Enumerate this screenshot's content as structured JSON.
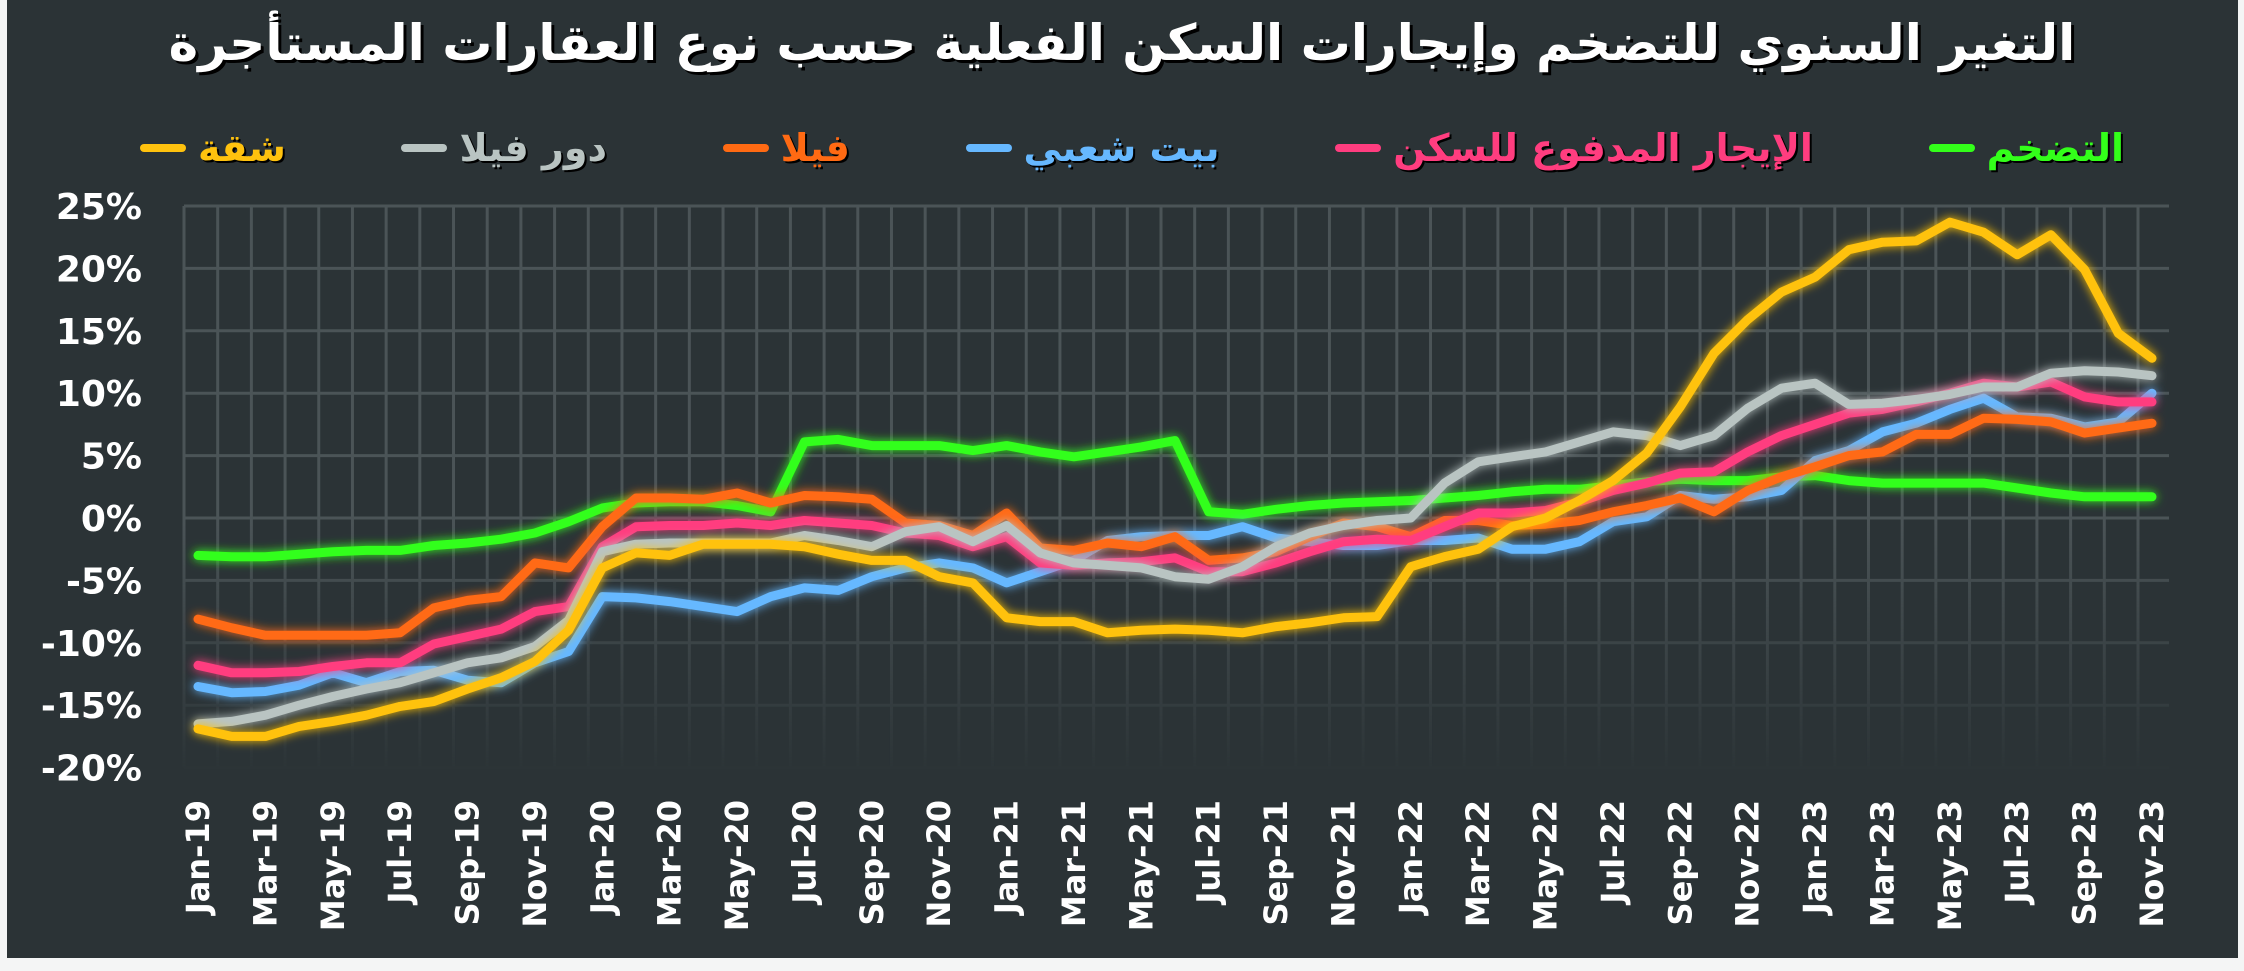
{
  "title": "التغير السنوي للتضخم وإيجارات السكن الفعلية حسب نوع العقارات المستأجرة",
  "legend": [
    {
      "label": "شقة",
      "color": "#ffc20e"
    },
    {
      "label": "دور فيلا",
      "color": "#b9c4c2"
    },
    {
      "label": "فيلا",
      "color": "#ff6a13"
    },
    {
      "label": "بيت شعبي",
      "color": "#66b8ff"
    },
    {
      "label": "الإيجار المدفوع للسكن",
      "color": "#ff3d7f"
    },
    {
      "label": "التضخم",
      "color": "#33ff1a"
    }
  ],
  "colors": {
    "background": "#2b3336",
    "grid": "#4b5457",
    "text": "#ffffff"
  },
  "chart_data": {
    "type": "line",
    "title": "التغير السنوي للتضخم وإيجارات السكن الفعلية حسب نوع العقارات المستأجرة",
    "xlabel": "",
    "ylabel": "",
    "ylim": [
      -20,
      25
    ],
    "yticks": [
      "25%",
      "20%",
      "15%",
      "10%",
      "5%",
      "0%",
      "-5%",
      "-10%",
      "-15%",
      "-20%"
    ],
    "grid": true,
    "legend_position": "top",
    "x": [
      "Jan-19",
      "Feb-19",
      "Mar-19",
      "Apr-19",
      "May-19",
      "Jun-19",
      "Jul-19",
      "Aug-19",
      "Sep-19",
      "Oct-19",
      "Nov-19",
      "Dec-19",
      "Jan-20",
      "Feb-20",
      "Mar-20",
      "Apr-20",
      "May-20",
      "Jun-20",
      "Jul-20",
      "Aug-20",
      "Sep-20",
      "Oct-20",
      "Nov-20",
      "Dec-20",
      "Jan-21",
      "Feb-21",
      "Mar-21",
      "Apr-21",
      "May-21",
      "Jun-21",
      "Jul-21",
      "Aug-21",
      "Sep-21",
      "Oct-21",
      "Nov-21",
      "Dec-21",
      "Jan-22",
      "Feb-22",
      "Mar-22",
      "Apr-22",
      "May-22",
      "Jun-22",
      "Jul-22",
      "Aug-22",
      "Sep-22",
      "Oct-22",
      "Nov-22",
      "Dec-22",
      "Jan-23",
      "Feb-23",
      "Mar-23",
      "Apr-23",
      "May-23",
      "Jun-23",
      "Jul-23",
      "Aug-23",
      "Sep-23",
      "Oct-23",
      "Nov-23"
    ],
    "xtick_labels": [
      "Jan-19",
      "Mar-19",
      "May-19",
      "Jul-19",
      "Sep-19",
      "Nov-19",
      "Jan-20",
      "Mar-20",
      "May-20",
      "Jul-20",
      "Sep-20",
      "Nov-20",
      "Jan-21",
      "Mar-21",
      "May-21",
      "Jul-21",
      "Sep-21",
      "Nov-21",
      "Jan-22",
      "Mar-22",
      "May-22",
      "Jul-22",
      "Sep-22",
      "Nov-22",
      "Jan-23",
      "Mar-23",
      "May-23",
      "Jul-23",
      "Sep-23",
      "Nov-23"
    ],
    "series": [
      {
        "name": "شقة",
        "color": "#ffc20e",
        "values": [
          -16.9,
          -17.5,
          -17.5,
          -16.7,
          -16.3,
          -15.8,
          -15.1,
          -14.7,
          -13.7,
          -12.8,
          -11.5,
          -9.0,
          -4.0,
          -2.8,
          -3.0,
          -2.1,
          -2.1,
          -2.1,
          -2.3,
          -2.9,
          -3.4,
          -3.4,
          -4.7,
          -5.2,
          -8.0,
          -8.3,
          -8.3,
          -9.2,
          -9.0,
          -8.9,
          -9.0,
          -9.2,
          -8.7,
          -8.4,
          -8.0,
          -7.9,
          -3.9,
          -3.1,
          -2.5,
          -0.7,
          0.0,
          1.4,
          3.0,
          5.2,
          8.9,
          13.2,
          15.9,
          18.1,
          19.3,
          21.5,
          22.1,
          22.2,
          23.7,
          22.9,
          21.1,
          22.7,
          19.9,
          14.8,
          12.8
        ]
      },
      {
        "name": "دور فيلا",
        "color": "#b9c4c2",
        "values": [
          -16.5,
          -16.3,
          -15.8,
          -15.0,
          -14.3,
          -13.7,
          -13.2,
          -12.4,
          -11.6,
          -11.2,
          -10.3,
          -8.2,
          -2.7,
          -2.1,
          -2.0,
          -2.0,
          -2.0,
          -2.0,
          -1.4,
          -1.8,
          -2.3,
          -1.1,
          -0.7,
          -1.9,
          -0.6,
          -2.8,
          -3.6,
          -3.8,
          -4.0,
          -4.7,
          -4.9,
          -3.9,
          -2.3,
          -1.2,
          -0.6,
          -0.2,
          0.0,
          2.8,
          4.5,
          4.9,
          5.3,
          6.1,
          6.9,
          6.6,
          5.8,
          6.6,
          8.8,
          10.4,
          10.8,
          9.1,
          9.2,
          9.5,
          9.9,
          10.5,
          10.5,
          11.6,
          11.8,
          11.7,
          11.4
        ]
      },
      {
        "name": "فيلا",
        "color": "#ff6a13",
        "values": [
          -8.1,
          -8.8,
          -9.4,
          -9.4,
          -9.4,
          -9.4,
          -9.2,
          -7.2,
          -6.6,
          -6.3,
          -3.6,
          -4.0,
          -0.7,
          1.6,
          1.6,
          1.5,
          2.0,
          1.2,
          1.8,
          1.7,
          1.5,
          -0.4,
          -0.6,
          -1.4,
          0.4,
          -2.4,
          -2.6,
          -2.0,
          -2.3,
          -1.5,
          -3.4,
          -3.2,
          -2.7,
          -1.5,
          -0.4,
          -0.7,
          -1.5,
          -0.2,
          -0.2,
          -0.6,
          -0.5,
          -0.2,
          0.5,
          1.0,
          1.6,
          0.5,
          2.2,
          3.3,
          4.1,
          5.0,
          5.3,
          6.7,
          6.7,
          8.0,
          7.9,
          7.7,
          6.8,
          7.2,
          7.6
        ]
      },
      {
        "name": "بيت شعبي",
        "color": "#66b8ff",
        "values": [
          -13.5,
          -14.0,
          -13.9,
          -13.4,
          -12.4,
          -13.2,
          -12.3,
          -12.2,
          -13.0,
          -13.2,
          -11.6,
          -10.7,
          -6.3,
          -6.4,
          -6.7,
          -7.1,
          -7.5,
          -6.3,
          -5.6,
          -5.8,
          -4.7,
          -4.0,
          -3.6,
          -4.0,
          -5.2,
          -4.3,
          -3.4,
          -1.8,
          -1.5,
          -1.4,
          -1.4,
          -0.7,
          -1.6,
          -1.9,
          -2.2,
          -2.2,
          -1.8,
          -1.8,
          -1.6,
          -2.5,
          -2.5,
          -1.9,
          -0.3,
          0.1,
          1.8,
          1.5,
          1.7,
          2.2,
          4.6,
          5.4,
          6.9,
          7.6,
          8.7,
          9.6,
          8.1,
          8.0,
          7.3,
          7.7,
          10.0
        ]
      },
      {
        "name": "الإيجار المدفوع للسكن",
        "color": "#ff3d7f",
        "values": [
          -11.8,
          -12.4,
          -12.4,
          -12.3,
          -11.9,
          -11.6,
          -11.6,
          -10.1,
          -9.5,
          -8.9,
          -7.5,
          -7.1,
          -2.3,
          -0.7,
          -0.6,
          -0.6,
          -0.4,
          -0.6,
          -0.2,
          -0.4,
          -0.6,
          -1.2,
          -1.4,
          -2.3,
          -1.5,
          -3.6,
          -3.8,
          -3.6,
          -3.5,
          -3.2,
          -4.3,
          -4.3,
          -3.6,
          -2.7,
          -1.9,
          -1.7,
          -1.8,
          -0.7,
          0.4,
          0.4,
          0.6,
          1.3,
          2.2,
          2.8,
          3.6,
          3.7,
          5.3,
          6.6,
          7.5,
          8.4,
          8.7,
          9.3,
          10.0,
          10.8,
          10.5,
          10.9,
          9.7,
          9.3,
          9.3
        ]
      },
      {
        "name": "التضخم",
        "color": "#33ff1a",
        "values": [
          -3.0,
          -3.1,
          -3.1,
          -2.9,
          -2.7,
          -2.6,
          -2.6,
          -2.2,
          -2.0,
          -1.7,
          -1.2,
          -0.3,
          0.8,
          1.2,
          1.3,
          1.3,
          1.0,
          0.5,
          6.1,
          6.3,
          5.8,
          5.8,
          5.8,
          5.4,
          5.8,
          5.3,
          4.9,
          5.3,
          5.7,
          6.2,
          0.5,
          0.3,
          0.7,
          1.0,
          1.2,
          1.3,
          1.4,
          1.6,
          1.8,
          2.1,
          2.3,
          2.3,
          2.6,
          2.9,
          3.1,
          3.0,
          3.0,
          3.3,
          3.4,
          3.0,
          2.8,
          2.8,
          2.8,
          2.8,
          2.4,
          2.0,
          1.7,
          1.7,
          1.7
        ]
      }
    ]
  }
}
